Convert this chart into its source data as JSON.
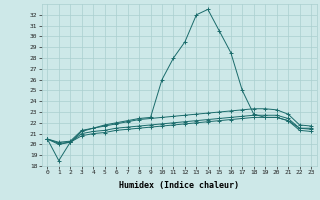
{
  "xlabel": "Humidex (Indice chaleur)",
  "bg_color": "#cde8e8",
  "grid_color": "#aacfcf",
  "line_color": "#1a6b6b",
  "xlim": [
    -0.5,
    23.5
  ],
  "ylim": [
    18,
    33
  ],
  "yticks": [
    18,
    19,
    20,
    21,
    22,
    23,
    24,
    25,
    26,
    27,
    28,
    29,
    30,
    31,
    32
  ],
  "xticks": [
    0,
    1,
    2,
    3,
    4,
    5,
    6,
    7,
    8,
    9,
    10,
    11,
    12,
    13,
    14,
    15,
    16,
    17,
    18,
    19,
    20,
    21,
    22,
    23
  ],
  "series": [
    [
      20.5,
      18.5,
      20.2,
      21.2,
      21.5,
      21.8,
      22.0,
      22.2,
      22.4,
      22.5,
      26.0,
      28.0,
      29.5,
      32.0,
      32.5,
      30.5,
      28.5,
      25.0,
      22.8,
      22.5,
      22.5,
      22.2,
      21.5,
      21.5
    ],
    [
      20.5,
      20.2,
      20.3,
      21.3,
      21.5,
      21.7,
      21.9,
      22.1,
      22.3,
      22.4,
      22.5,
      22.6,
      22.7,
      22.8,
      22.9,
      23.0,
      23.1,
      23.2,
      23.3,
      23.3,
      23.2,
      22.8,
      21.8,
      21.7
    ],
    [
      20.5,
      20.1,
      20.2,
      21.0,
      21.2,
      21.3,
      21.5,
      21.6,
      21.7,
      21.8,
      21.9,
      22.0,
      22.1,
      22.2,
      22.3,
      22.4,
      22.5,
      22.6,
      22.7,
      22.7,
      22.7,
      22.4,
      21.5,
      21.4
    ],
    [
      20.5,
      20.0,
      20.2,
      20.8,
      21.0,
      21.1,
      21.3,
      21.4,
      21.5,
      21.6,
      21.7,
      21.8,
      21.9,
      22.0,
      22.1,
      22.2,
      22.3,
      22.4,
      22.5,
      22.5,
      22.5,
      22.2,
      21.3,
      21.2
    ]
  ]
}
